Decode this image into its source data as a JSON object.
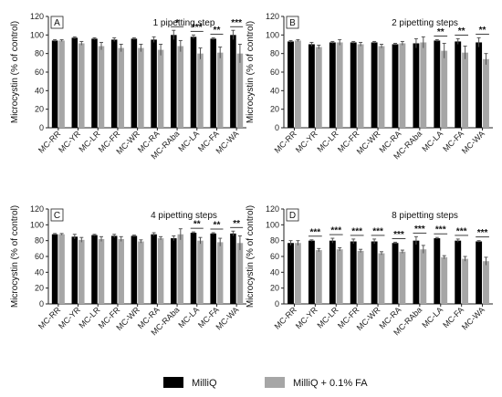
{
  "chart_data": [
    {
      "type": "bar",
      "panel_letter": "A",
      "title": "1 pipetting step",
      "ylabel": "Microcystin (% of control)",
      "ylim": [
        0,
        120
      ],
      "yticks": [
        0,
        20,
        40,
        60,
        80,
        100,
        120
      ],
      "categories": [
        "MC-RR",
        "MC-YR",
        "MC-LR",
        "MC-FR",
        "MC-WR",
        "MC-RA",
        "MC-RAba",
        "MC-LA",
        "MC-FA",
        "MC-WA"
      ],
      "series": [
        {
          "name": "MilliQ",
          "color": "#000000",
          "values": [
            94,
            97,
            96,
            95,
            96,
            95,
            100,
            98,
            96,
            100
          ],
          "errors": [
            1,
            1,
            1,
            2,
            1,
            3,
            5,
            2,
            1,
            5
          ]
        },
        {
          "name": "MilliQ + 0.1% FA",
          "color": "#a6a6a6",
          "values": [
            94,
            91,
            88,
            86,
            86,
            84,
            88,
            80,
            81,
            80
          ],
          "errors": [
            1,
            2,
            4,
            4,
            4,
            6,
            6,
            6,
            6,
            10
          ]
        }
      ],
      "significance": [
        "",
        "",
        "",
        "",
        "",
        "",
        "*",
        "***",
        "**",
        "***"
      ]
    },
    {
      "type": "bar",
      "panel_letter": "B",
      "title": "2 pipetting steps",
      "ylabel": "Microcystin (% of control)",
      "ylim": [
        0,
        120
      ],
      "yticks": [
        0,
        20,
        40,
        60,
        80,
        100,
        120
      ],
      "categories": [
        "MC-RR",
        "MC-YR",
        "MC-LR",
        "MC-FR",
        "MC-WR",
        "MC-RA",
        "MC-RAba",
        "MC-LA",
        "MC-FA",
        "MC-WA"
      ],
      "series": [
        {
          "name": "MilliQ",
          "color": "#000000",
          "values": [
            93,
            90,
            92,
            92,
            92,
            90,
            91,
            94,
            93,
            92
          ],
          "errors": [
            1,
            2,
            1,
            1,
            1,
            1,
            5,
            1,
            3,
            5
          ]
        },
        {
          "name": "MilliQ + 0.1% FA",
          "color": "#a6a6a6",
          "values": [
            94,
            87,
            92,
            90,
            88,
            91,
            92,
            83,
            81,
            74
          ],
          "errors": [
            1,
            2,
            3,
            2,
            2,
            2,
            6,
            8,
            7,
            6
          ]
        }
      ],
      "significance": [
        "",
        "",
        "",
        "",
        "",
        "",
        "",
        "**",
        "**",
        "**"
      ]
    },
    {
      "type": "bar",
      "panel_letter": "C",
      "title": "4 pipetting steps",
      "ylabel": "Microcystin (% of control)",
      "ylim": [
        0,
        120
      ],
      "yticks": [
        0,
        20,
        40,
        60,
        80,
        100,
        120
      ],
      "categories": [
        "MC-RR",
        "MC-YR",
        "MC-LR",
        "MC-FR",
        "MC-WR",
        "MC-RA",
        "MC-RAba",
        "MC-LA",
        "MC-FA",
        "MC-WA"
      ],
      "series": [
        {
          "name": "MilliQ",
          "color": "#000000",
          "values": [
            88,
            85,
            87,
            86,
            86,
            88,
            83,
            90,
            89,
            89
          ],
          "errors": [
            1,
            3,
            1,
            2,
            1,
            2,
            3,
            1,
            1,
            3
          ]
        },
        {
          "name": "MilliQ + 0.1% FA",
          "color": "#a6a6a6",
          "values": [
            88,
            81,
            82,
            82,
            79,
            83,
            88,
            80,
            78,
            77
          ],
          "errors": [
            1,
            3,
            3,
            3,
            2,
            2,
            7,
            4,
            5,
            9
          ]
        }
      ],
      "significance": [
        "",
        "",
        "",
        "",
        "",
        "",
        "",
        "**",
        "**",
        "**"
      ]
    },
    {
      "type": "bar",
      "panel_letter": "D",
      "title": "8 pipetting steps",
      "ylabel": "Microcystin (% of control)",
      "ylim": [
        0,
        120
      ],
      "yticks": [
        0,
        20,
        40,
        60,
        80,
        100,
        120
      ],
      "categories": [
        "MC-RR",
        "MC-YR",
        "MC-LR",
        "MC-FR",
        "MC-WR",
        "MC-RA",
        "MC-RAba",
        "MC-LA",
        "MC-FA",
        "MC-WA"
      ],
      "series": [
        {
          "name": "MilliQ",
          "color": "#000000",
          "values": [
            77,
            80,
            80,
            79,
            79,
            77,
            80,
            83,
            80,
            79
          ],
          "errors": [
            3,
            1,
            3,
            3,
            3,
            1,
            5,
            1,
            2,
            1
          ]
        },
        {
          "name": "MilliQ + 0.1% FA",
          "color": "#a6a6a6",
          "values": [
            77,
            68,
            69,
            67,
            64,
            66,
            69,
            59,
            57,
            54
          ],
          "errors": [
            3,
            2,
            2,
            2,
            2,
            2,
            5,
            2,
            3,
            5
          ]
        }
      ],
      "significance": [
        "",
        "***",
        "***",
        "***",
        "***",
        "***",
        "***",
        "***",
        "***",
        "***"
      ]
    }
  ],
  "legend": [
    {
      "label": "MilliQ",
      "color": "#000000"
    },
    {
      "label": "MilliQ + 0.1% FA",
      "color": "#a6a6a6"
    }
  ]
}
